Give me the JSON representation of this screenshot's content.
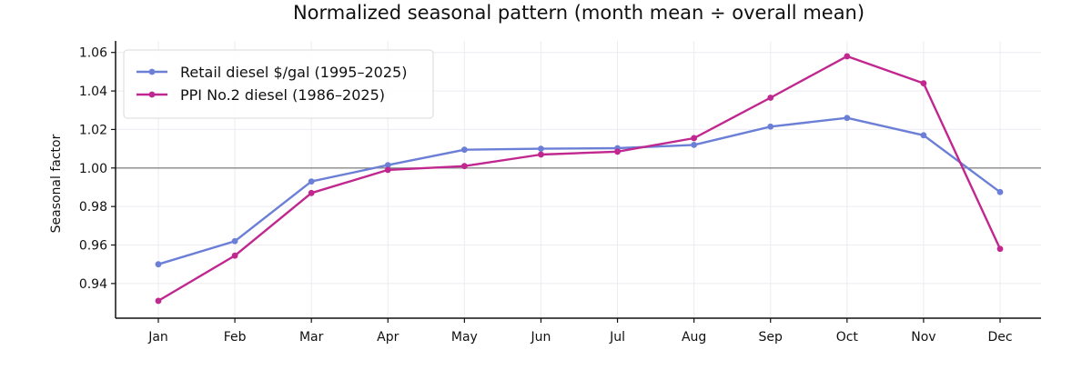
{
  "chart_data": {
    "type": "line",
    "title": "Normalized seasonal pattern (month mean ÷ overall mean)",
    "xlabel": "",
    "ylabel": "Seasonal factor",
    "categories": [
      "Jan",
      "Feb",
      "Mar",
      "Apr",
      "May",
      "Jun",
      "Jul",
      "Aug",
      "Sep",
      "Oct",
      "Nov",
      "Dec"
    ],
    "ylim": [
      0.922,
      1.066
    ],
    "yticks": [
      0.94,
      0.96,
      0.98,
      1.0,
      1.02,
      1.04,
      1.06
    ],
    "ytick_labels": [
      "0.94",
      "0.96",
      "0.98",
      "1.00",
      "1.02",
      "1.04",
      "1.06"
    ],
    "reference_line": 1.0,
    "grid": true,
    "legend_position": "top-left",
    "series": [
      {
        "name": "Retail diesel $/gal (1995–2025)",
        "color": "#6b7fd7",
        "values": [
          0.95,
          0.962,
          0.993,
          1.0015,
          1.0095,
          1.01,
          1.0103,
          1.012,
          1.0215,
          1.026,
          1.017,
          0.9875
        ]
      },
      {
        "name": "PPI No.2 diesel (1986–2025)",
        "color": "#c0278f",
        "values": [
          0.931,
          0.9545,
          0.987,
          0.999,
          1.001,
          1.007,
          1.0085,
          1.0155,
          1.0365,
          1.058,
          1.044,
          0.958
        ]
      }
    ]
  }
}
